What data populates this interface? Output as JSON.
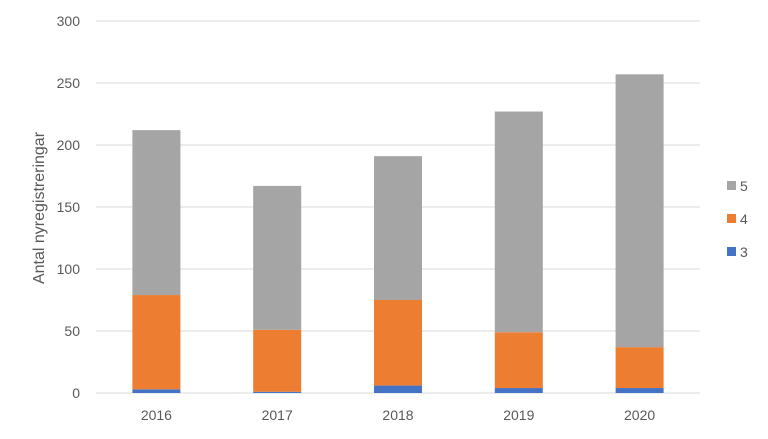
{
  "chart_data": {
    "type": "bar",
    "stacked": true,
    "title": "",
    "xlabel": "",
    "ylabel": "Antal nyregistreringar",
    "ylim": [
      0,
      300
    ],
    "yticks": [
      0,
      50,
      100,
      150,
      200,
      250,
      300
    ],
    "grid": true,
    "legend": "right",
    "categories": [
      "2016",
      "2017",
      "2018",
      "2019",
      "2020"
    ],
    "series": [
      {
        "name": "3",
        "color": "#4472C4",
        "values": [
          3,
          1,
          6,
          4,
          4
        ]
      },
      {
        "name": "4",
        "color": "#ED7D31",
        "values": [
          76,
          50,
          69,
          45,
          33
        ]
      },
      {
        "name": "5",
        "color": "#A5A5A5",
        "values": [
          133,
          116,
          116,
          178,
          220
        ]
      }
    ],
    "legend_order": [
      "5",
      "4",
      "3"
    ]
  }
}
